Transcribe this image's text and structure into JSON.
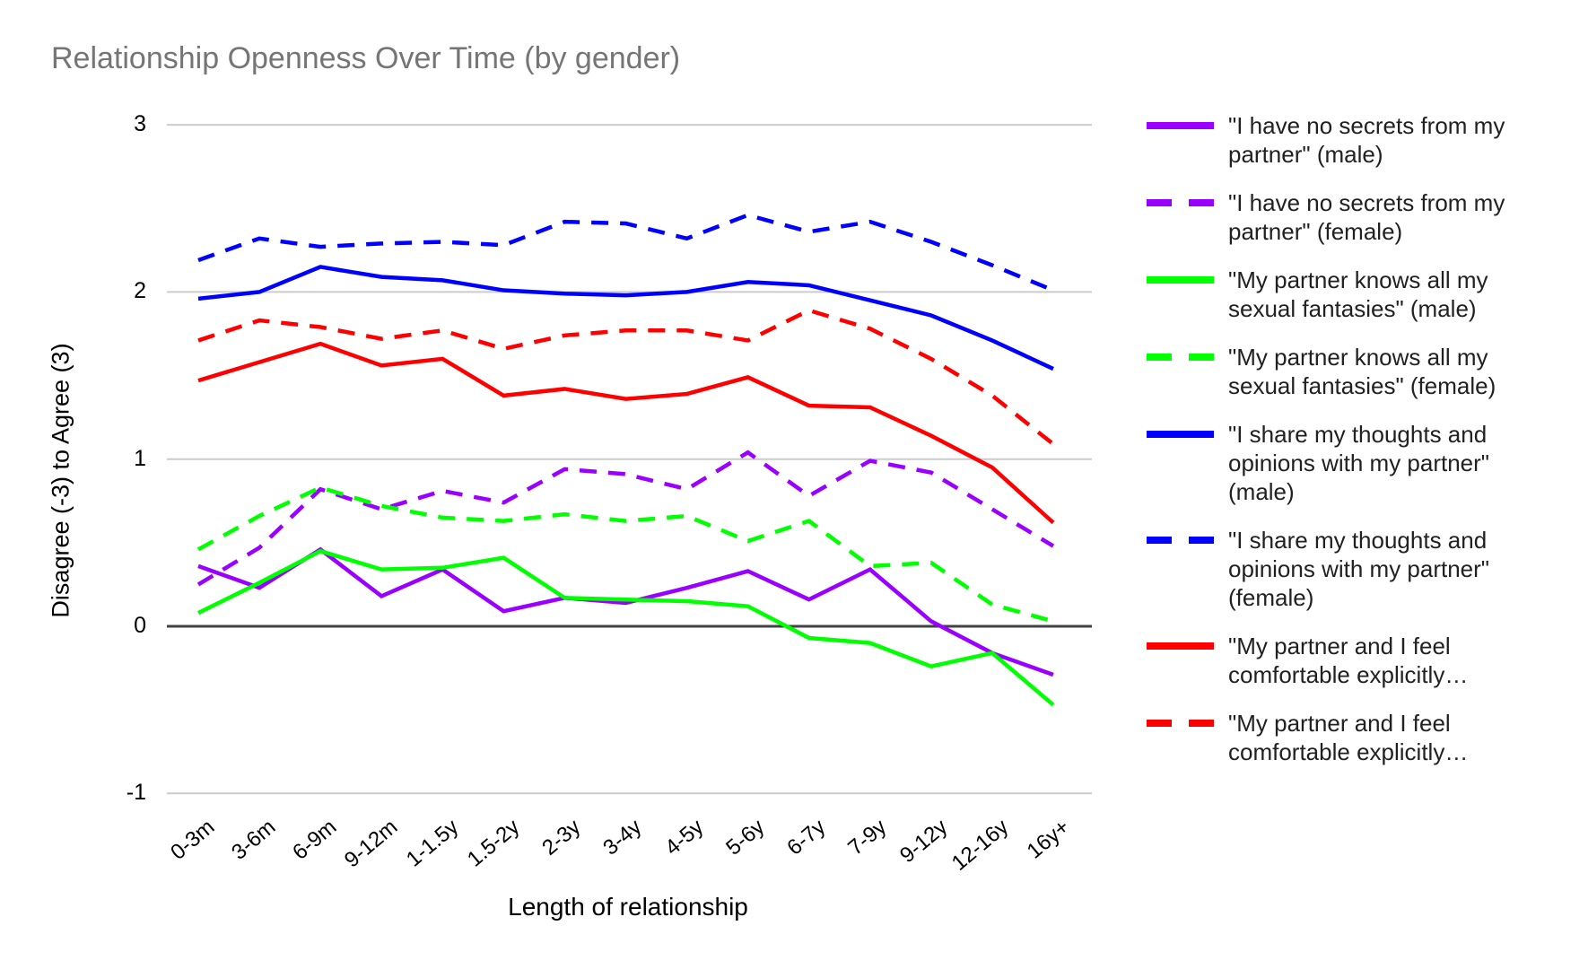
{
  "title": "Relationship Openness Over Time (by gender)",
  "axes": {
    "y_title": "Disagree (-3) to Agree (3)",
    "x_title": "Length of relationship",
    "y_ticks": [
      3,
      2,
      1,
      0,
      -1
    ]
  },
  "colors": {
    "purple": "#9900ff",
    "green": "#00ff00",
    "blue": "#0000ff",
    "red": "#ff0000",
    "gridline": "#cccccc",
    "zero_line": "#424242",
    "title_text": "#757575",
    "legend_text": "#212121"
  },
  "chart_data": {
    "type": "line",
    "title": "Relationship Openness Over Time (by gender)",
    "xlabel": "Length of relationship",
    "ylabel": "Disagree (-3) to Agree (3)",
    "ylim": [
      -1,
      3
    ],
    "grid": true,
    "legend_position": "right",
    "categories": [
      "0-3m",
      "3-6m",
      "6-9m",
      "9-12m",
      "1-1.5y",
      "1.5-2y",
      "2-3y",
      "3-4y",
      "4-5y",
      "5-6y",
      "6-7y",
      "7-9y",
      "9-12y",
      "12-16y",
      "16y+"
    ],
    "series": [
      {
        "name": "\"I have no secrets from my partner\" (male)",
        "legend_label": "\"I have no secrets from my partner\" (male)",
        "color": "#9900ff",
        "dash": false,
        "values": [
          0.36,
          0.23,
          0.46,
          0.18,
          0.34,
          0.09,
          0.17,
          0.14,
          0.23,
          0.33,
          0.16,
          0.34,
          0.03,
          -0.16,
          -0.29
        ]
      },
      {
        "name": "\"I have no secrets from my partner\" (female)",
        "legend_label": "\"I have no secrets from my partner\" (female)",
        "color": "#9900ff",
        "dash": true,
        "values": [
          0.25,
          0.47,
          0.82,
          0.7,
          0.81,
          0.74,
          0.94,
          0.91,
          0.82,
          1.04,
          0.78,
          0.99,
          0.92,
          0.7,
          0.48
        ]
      },
      {
        "name": "\"My partner knows all my sexual fantasies\" (male)",
        "legend_label": "\"My partner knows all my sexual fantasies\" (male)",
        "color": "#00ff00",
        "dash": false,
        "values": [
          0.08,
          0.26,
          0.45,
          0.34,
          0.35,
          0.41,
          0.17,
          0.16,
          0.15,
          0.12,
          -0.07,
          -0.1,
          -0.24,
          -0.16,
          -0.47
        ]
      },
      {
        "name": "\"My partner knows all my sexual fantasies\" (female)",
        "legend_label": "\"My partner knows all my sexual fantasies\" (female)",
        "color": "#00ff00",
        "dash": true,
        "values": [
          0.46,
          0.66,
          0.83,
          0.72,
          0.65,
          0.63,
          0.67,
          0.63,
          0.66,
          0.51,
          0.63,
          0.36,
          0.38,
          0.13,
          0.03
        ]
      },
      {
        "name": "\"I share my thoughts and opinions with my partner\" (male)",
        "legend_label": "\"I share my thoughts and opinions with my partner\" (male)",
        "color": "#0000ff",
        "dash": false,
        "values": [
          1.96,
          2.0,
          2.15,
          2.09,
          2.07,
          2.01,
          1.99,
          1.98,
          2.0,
          2.06,
          2.04,
          1.95,
          1.86,
          1.71,
          1.54
        ]
      },
      {
        "name": "\"I share my thoughts and opinions with my partner\" (female)",
        "legend_label": "\"I share my thoughts and opinions with my partner\" (female)",
        "color": "#0000ff",
        "dash": true,
        "values": [
          2.19,
          2.32,
          2.27,
          2.29,
          2.3,
          2.28,
          2.42,
          2.41,
          2.32,
          2.46,
          2.36,
          2.42,
          2.3,
          2.16,
          2.01
        ]
      },
      {
        "name": "\"My partner and I feel comfortable explicitly…",
        "legend_label": "\"My partner and I feel comfortable explicitly…",
        "color": "#ff0000",
        "dash": false,
        "values": [
          1.47,
          1.58,
          1.69,
          1.56,
          1.6,
          1.38,
          1.42,
          1.36,
          1.39,
          1.49,
          1.32,
          1.31,
          1.14,
          0.95,
          0.62
        ]
      },
      {
        "name": "\"My partner and I feel comfortable explicitly…",
        "legend_label": "\"My partner and I feel comfortable explicitly…",
        "color": "#ff0000",
        "dash": true,
        "values": [
          1.71,
          1.83,
          1.79,
          1.72,
          1.77,
          1.66,
          1.74,
          1.77,
          1.77,
          1.71,
          1.89,
          1.78,
          1.6,
          1.38,
          1.09
        ]
      }
    ]
  }
}
